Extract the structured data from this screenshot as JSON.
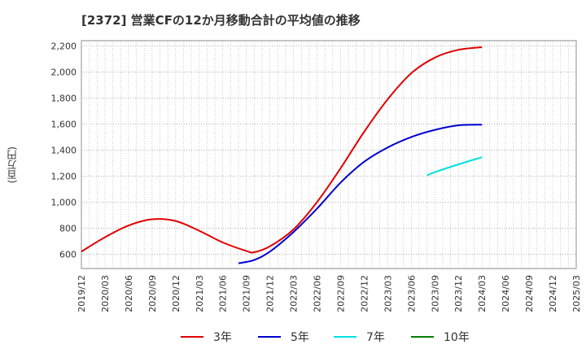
{
  "chart_data": {
    "type": "line",
    "title": "[2372]  営業CFの12か月移動合計の平均値の推移",
    "ylabel": "(百万円)",
    "xlabel": "",
    "x_ticks": [
      "2019/12",
      "2020/03",
      "2020/06",
      "2020/09",
      "2020/12",
      "2021/03",
      "2021/06",
      "2021/09",
      "2021/12",
      "2022/03",
      "2022/06",
      "2022/09",
      "2022/12",
      "2023/03",
      "2023/06",
      "2023/09",
      "2023/12",
      "2024/03",
      "2024/06",
      "2024/09",
      "2024/12",
      "2025/03"
    ],
    "y_ticks": [
      "600",
      "800",
      "1,000",
      "1,200",
      "1,400",
      "1,600",
      "1,800",
      "2,000",
      "2,200"
    ],
    "ylim": [
      490,
      2240
    ],
    "grid": true,
    "legend_position": "bottom",
    "series": [
      {
        "name": "3年",
        "color": "#e00000",
        "x": [
          "2019/12",
          "2020/03",
          "2020/06",
          "2020/09",
          "2020/12",
          "2021/03",
          "2021/06",
          "2021/09",
          "2021/10",
          "2021/12",
          "2022/03",
          "2022/06",
          "2022/09",
          "2022/12",
          "2023/03",
          "2023/06",
          "2023/09",
          "2023/12",
          "2024/03"
        ],
        "values": [
          620,
          730,
          820,
          868,
          855,
          780,
          690,
          625,
          615,
          660,
          790,
          1000,
          1260,
          1540,
          1790,
          1990,
          2110,
          2170,
          2190
        ]
      },
      {
        "name": "5年",
        "color": "#0000d0",
        "x": [
          "2021/08",
          "2021/10",
          "2021/12",
          "2022/03",
          "2022/06",
          "2022/09",
          "2022/12",
          "2023/03",
          "2023/06",
          "2023/09",
          "2023/12",
          "2024/03"
        ],
        "values": [
          530,
          555,
          620,
          770,
          950,
          1150,
          1310,
          1420,
          1500,
          1555,
          1590,
          1595
        ]
      },
      {
        "name": "7年",
        "color": "#00e0e0",
        "x": [
          "2023/08",
          "2023/09",
          "2023/12",
          "2024/03"
        ],
        "values": [
          1205,
          1230,
          1290,
          1345
        ]
      },
      {
        "name": "10年",
        "color": "#008000",
        "x": [],
        "values": []
      }
    ]
  }
}
